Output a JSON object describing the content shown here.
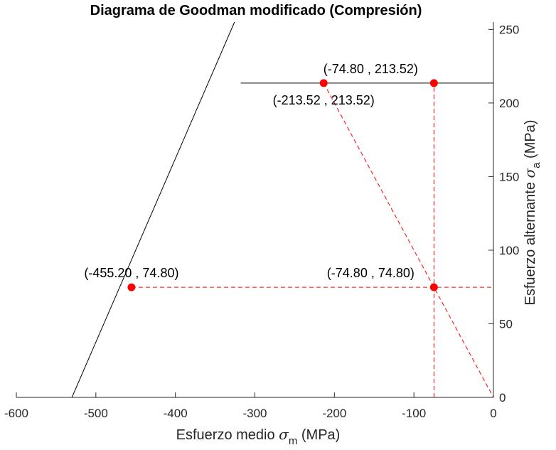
{
  "chart_data": {
    "type": "line",
    "title": "Diagrama de Goodman modificado (Compresión)",
    "xlabel": {
      "main": "Esfuerzo medio ",
      "symbol": "σ",
      "sub": "m",
      "unit": " (MPa)"
    },
    "ylabel": {
      "main": "Esfuerzo alternante ",
      "symbol": "σ",
      "sub": "a",
      "unit": " (MPa)"
    },
    "xlim": [
      -600,
      0
    ],
    "ylim": [
      0,
      255
    ],
    "xticks": [
      -600,
      -500,
      -400,
      -300,
      -200,
      -100,
      0
    ],
    "yticks": [
      0,
      50,
      100,
      150,
      200,
      250
    ],
    "y_axis_position": "right",
    "grid": false,
    "colors": {
      "boundary": "#000000",
      "construction": "#ff0000",
      "axis": "#262626"
    },
    "series": [
      {
        "style": "solid-black",
        "points": [
          [
            -530.1,
            0
          ],
          [
            -325.6,
            255
          ]
        ]
      },
      {
        "style": "solid-black",
        "points": [
          [
            -317.8,
            213.52
          ],
          [
            0,
            213.52
          ]
        ]
      },
      {
        "style": "dashed-red",
        "points": [
          [
            -213.52,
            213.52
          ],
          [
            0,
            0
          ]
        ]
      },
      {
        "style": "dashed-red",
        "points": [
          [
            -455.2,
            74.8
          ],
          [
            0,
            74.8
          ]
        ]
      },
      {
        "style": "dashed-red",
        "points": [
          [
            -74.8,
            0
          ],
          [
            -74.8,
            213.52
          ]
        ]
      }
    ],
    "points": [
      {
        "x": -74.8,
        "y": 213.52
      },
      {
        "x": -213.52,
        "y": 213.52
      },
      {
        "x": -455.2,
        "y": 74.8
      },
      {
        "x": -74.8,
        "y": 74.8
      }
    ],
    "annotations": [
      {
        "text": "(-74.80 , 213.52)",
        "x": -74.8,
        "y": 213.52,
        "anchor": "above-left"
      },
      {
        "text": "(-213.52 , 213.52)",
        "x": -213.52,
        "y": 213.52,
        "anchor": "below"
      },
      {
        "text": "(-455.20 , 74.80)",
        "x": -455.2,
        "y": 74.8,
        "anchor": "above"
      },
      {
        "text": "(-74.80 , 74.80)",
        "x": -74.8,
        "y": 74.8,
        "anchor": "above-left"
      }
    ]
  }
}
